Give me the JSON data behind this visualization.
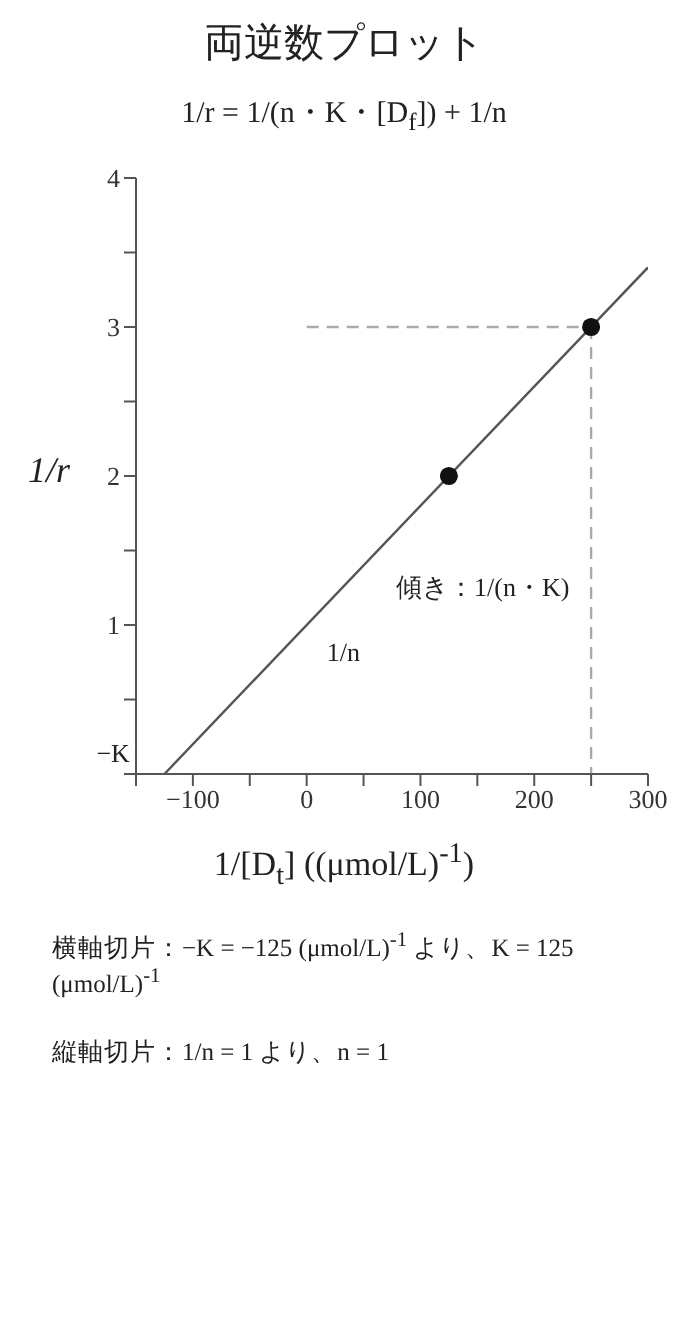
{
  "chart_data": {
    "type": "scatter",
    "title": "両逆数プロット",
    "subtitle": "1/r = 1/(n・K・[D$_{f}$]) + 1/n",
    "xlabel": "1/[D$_{t}$] ((μmol/L)$^{-1}$)",
    "ylabel": "1/r",
    "xlim": [
      -150,
      300
    ],
    "xticks": [
      {
        "value": -150,
        "label": null
      },
      -100,
      {
        "value": -50,
        "label": null
      },
      0,
      {
        "value": 50,
        "label": null
      },
      100,
      {
        "value": 150,
        "label": null
      },
      200,
      {
        "value": 250,
        "label": null
      },
      300
    ],
    "ylim": [
      0,
      4
    ],
    "yticks": [
      {
        "value": 0,
        "label": null
      },
      {
        "value": 0.5,
        "label": null
      },
      1,
      {
        "value": 1.5,
        "label": null
      },
      2,
      {
        "value": 2.5,
        "label": null
      },
      3,
      {
        "value": 3.5,
        "label": null
      },
      4
    ],
    "series": [
      {
        "type": "line",
        "color": "#555555",
        "x": [
          -125,
          300
        ],
        "values": [
          0,
          3.4
        ],
        "marker": "none"
      },
      {
        "type": "line",
        "color": "#aaaaaa",
        "x": [
          0,
          250
        ],
        "values": [
          3,
          3
        ],
        "marker": "none",
        "line_style": "dashed"
      },
      {
        "type": "line",
        "color": "#aaaaaa",
        "x": [
          250,
          250
        ],
        "values": [
          3,
          0
        ],
        "marker": "none",
        "line_style": "dashed"
      },
      {
        "color": "#111111",
        "x": [
          125,
          250
        ],
        "values": [
          2,
          3
        ],
        "marker": "circle"
      }
    ],
    "annotations": [
      {
        "text": "−K",
        "x": -125,
        "y": 0
      },
      {
        "text": "1/n",
        "x": 0,
        "y": 1
      },
      "傾き：1/(n・K)",
      "横軸切片：−K = −125 (μmol/L)$^{-1}$ より、K = 125 (μmol/L)$^{-1}$",
      "縦軸切片：1/n = 1 より、n = 1"
    ]
  }
}
